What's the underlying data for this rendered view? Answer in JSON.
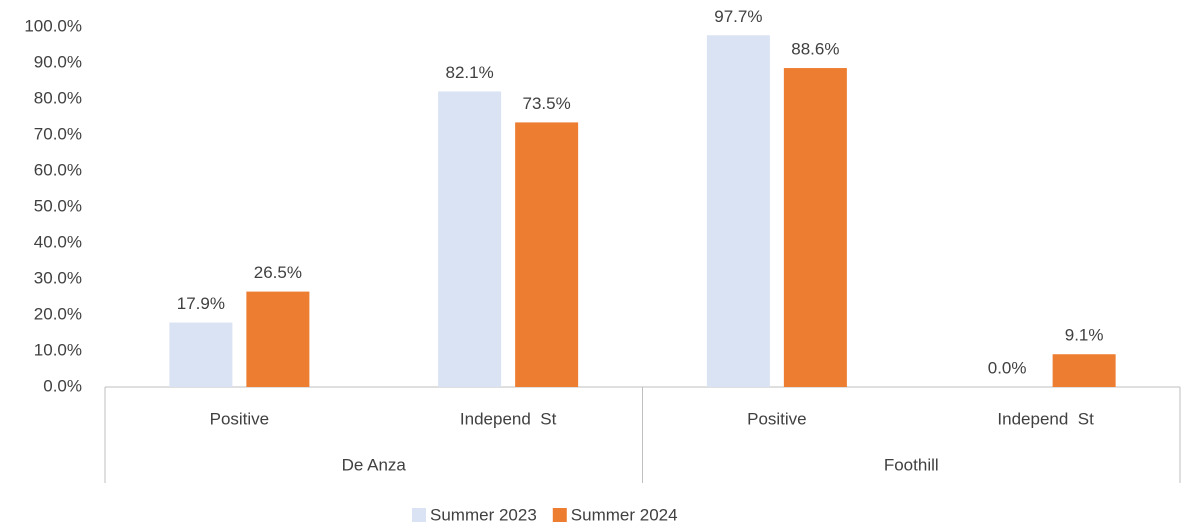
{
  "chart_data": {
    "type": "bar",
    "categories": [
      "Positive",
      "Independ  St",
      "Positive",
      "Independ  St"
    ],
    "groups": [
      "De Anza",
      "Foothill"
    ],
    "series": [
      {
        "name": "Summer 2023",
        "color": "#dae3f3",
        "values": [
          17.9,
          82.1,
          97.7,
          0.0
        ],
        "value_labels": [
          "17.9%",
          "82.1%",
          "97.7%",
          "0.0%"
        ]
      },
      {
        "name": "Summer 2024",
        "color": "#ed7d31",
        "values": [
          26.5,
          73.5,
          88.6,
          9.1
        ],
        "value_labels": [
          "26.5%",
          "73.5%",
          "88.6%",
          "9.1%"
        ]
      }
    ],
    "ylim": [
      0,
      100
    ],
    "yticks": [
      {
        "value": 0,
        "label": "0.0%"
      },
      {
        "value": 10,
        "label": "10.0%"
      },
      {
        "value": 20,
        "label": "20.0%"
      },
      {
        "value": 30,
        "label": "30.0%"
      },
      {
        "value": 40,
        "label": "40.0%"
      },
      {
        "value": 50,
        "label": "50.0%"
      },
      {
        "value": 60,
        "label": "60.0%"
      },
      {
        "value": 70,
        "label": "70.0%"
      },
      {
        "value": 80,
        "label": "80.0%"
      },
      {
        "value": 90,
        "label": "90.0%"
      },
      {
        "value": 100,
        "label": "100.0%"
      }
    ],
    "grid": false,
    "legend": "bottom"
  }
}
